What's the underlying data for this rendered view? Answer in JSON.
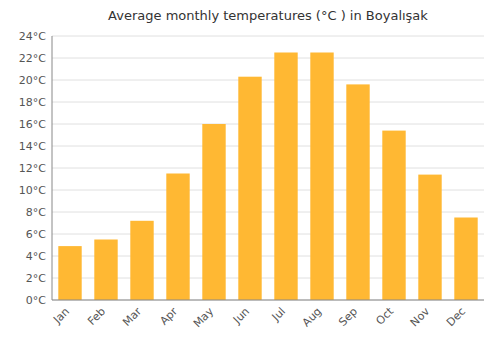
{
  "chart_data": {
    "type": "bar",
    "title": "Average monthly temperatures (°C ) in Boyalışak",
    "categories": [
      "Jan",
      "Feb",
      "Mar",
      "Apr",
      "May",
      "Jun",
      "Jul",
      "Aug",
      "Sep",
      "Oct",
      "Nov",
      "Dec"
    ],
    "values": [
      4.9,
      5.5,
      7.2,
      11.5,
      16.0,
      20.3,
      22.5,
      22.5,
      19.6,
      15.4,
      11.4,
      7.5
    ],
    "color": "#FFB833",
    "ylim": [
      0,
      24
    ],
    "yticks": [
      {
        "value": 0,
        "label": "0°C"
      },
      {
        "value": 2,
        "label": "2°C"
      },
      {
        "value": 4,
        "label": "4°C"
      },
      {
        "value": 6,
        "label": "6°C"
      },
      {
        "value": 8,
        "label": "8°C"
      },
      {
        "value": 10,
        "label": "10°C"
      },
      {
        "value": 12,
        "label": "12°C"
      },
      {
        "value": 14,
        "label": "14°C"
      },
      {
        "value": 16,
        "label": "16°C"
      },
      {
        "value": 18,
        "label": "18°C"
      },
      {
        "value": 20,
        "label": "20°C"
      },
      {
        "value": 22,
        "label": "22°C"
      },
      {
        "value": 24,
        "label": "24°C"
      }
    ],
    "grid": true
  }
}
